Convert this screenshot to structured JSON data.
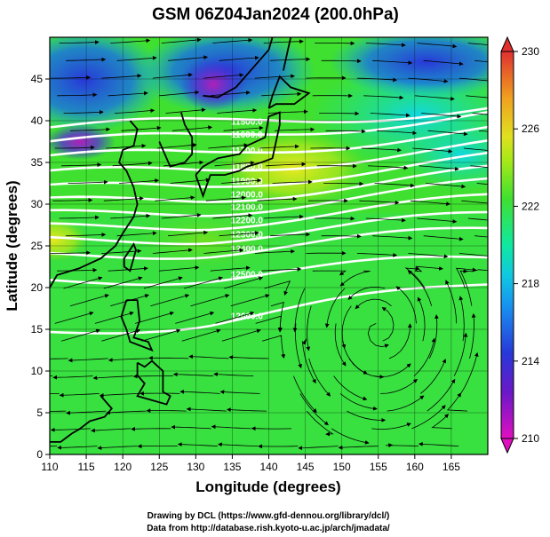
{
  "chart_data": {
    "type": "heatmap",
    "title": "GSM 06Z04Jan2024 (200.0hPa)",
    "xlabel": "Longitude (degrees)",
    "ylabel": "Latitude  (degrees)",
    "xlim": [
      110,
      170
    ],
    "ylim": [
      0,
      50
    ],
    "x_ticks": [
      110,
      115,
      120,
      125,
      130,
      135,
      140,
      145,
      150,
      155,
      160,
      165
    ],
    "y_ticks": [
      0,
      5,
      10,
      15,
      20,
      25,
      30,
      35,
      40,
      45
    ],
    "grid": true,
    "colorbar": {
      "min": 210,
      "max": 230,
      "ticks": [
        210,
        214,
        218,
        222,
        226,
        230
      ],
      "colors": [
        "#e010c0",
        "#2838d8",
        "#10b8f0",
        "#10e8a0",
        "#60e020",
        "#e0e020",
        "#f0a020",
        "#e03030"
      ]
    },
    "contours": [
      {
        "label": "11500.0",
        "lat_west": 39.2,
        "lat_east": 41.5
      },
      {
        "label": "11600.0",
        "lat_west": 37.3,
        "lat_east": 40.8
      },
      {
        "label": "11700.0",
        "lat_west": 35.4,
        "lat_east": 38.8
      },
      {
        "label": "11800.0",
        "lat_west": 33.4,
        "lat_east": 37.0
      },
      {
        "label": "11900.0",
        "lat_west": 31.6,
        "lat_east": 35.4
      },
      {
        "label": "12000.0",
        "lat_west": 30.0,
        "lat_east": 33.8
      },
      {
        "label": "12100.0",
        "lat_west": 28.5,
        "lat_east": 32.3
      },
      {
        "label": "12200.0",
        "lat_west": 27.0,
        "lat_east": 30.5
      },
      {
        "label": "12300.0",
        "lat_west": 25.5,
        "lat_east": 28.5
      },
      {
        "label": "12400.0",
        "lat_west": 23.8,
        "lat_east": 26.8
      },
      {
        "label": "12500.0",
        "lat_west": 20.8,
        "lat_east": 23.5
      },
      {
        "label": "12600.0",
        "lat_west": 14.8,
        "lat_east": 20.5
      }
    ],
    "annotations": [
      "11500.0",
      "11600.0",
      "11700.0",
      "11800.0",
      "11900.0",
      "12000.0",
      "12100.0",
      "12200.0",
      "12300.0",
      "12400.0",
      "12500.0",
      "12600.0"
    ]
  },
  "credits": [
    "Drawing by DCL (https://www.gfd-dennou.org/library/dcl/)",
    "Data from http://database.rish.kyoto-u.ac.jp/arch/jmadata/"
  ]
}
